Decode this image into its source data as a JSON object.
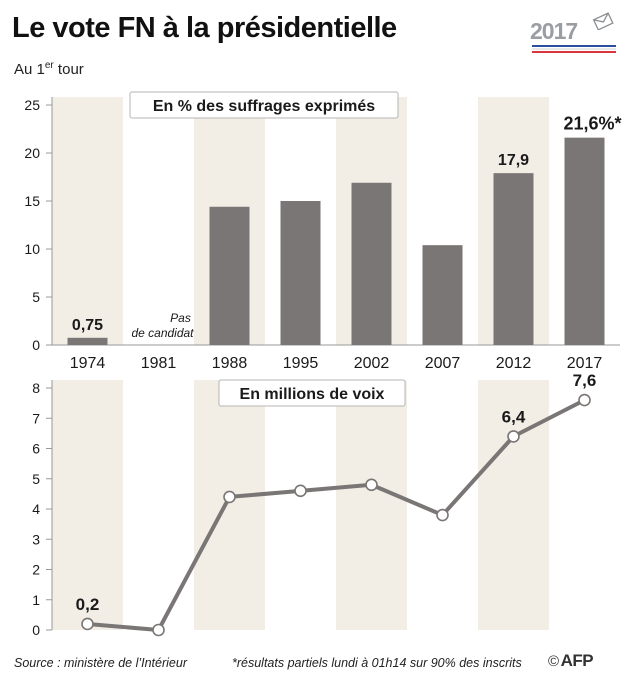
{
  "title": "Le vote FN à la présidentielle",
  "subtitle": {
    "prefix": "Au 1",
    "sup": "er",
    "suffix": " tour"
  },
  "logo": {
    "year": "2017",
    "stripe_colors": [
      "#2b4ea2",
      "#e8e8e8",
      "#d9363e"
    ]
  },
  "colors": {
    "bar": "#7a7675",
    "band": "#f2ede5",
    "axis": "#999999",
    "line": "#7a7675",
    "marker_fill": "#ffffff",
    "text": "#1a1a1a"
  },
  "chart_data": [
    {
      "type": "bar",
      "title": "En % des suffrages exprimés",
      "categories": [
        "1974",
        "1981",
        "1988",
        "1995",
        "2002",
        "2007",
        "2012",
        "2017"
      ],
      "values": [
        0.75,
        null,
        14.4,
        15.0,
        16.9,
        10.4,
        17.9,
        21.6
      ],
      "ylim": [
        0,
        25
      ],
      "yticks": [
        "0",
        "5",
        "10",
        "15",
        "20",
        "25"
      ],
      "data_labels": [
        {
          "index": 0,
          "text": "0,75"
        },
        {
          "index": 6,
          "text": "17,9"
        },
        {
          "index": 7,
          "text": "21,6%*"
        }
      ],
      "no_candidate_label": [
        "Pas",
        "de candidat"
      ],
      "no_candidate_index": 1
    },
    {
      "type": "line",
      "title": "En millions de voix",
      "categories": [
        "1974",
        "1981",
        "1988",
        "1995",
        "2002",
        "2007",
        "2012",
        "2017"
      ],
      "values": [
        0.2,
        0.0,
        4.4,
        4.6,
        4.8,
        3.8,
        6.4,
        7.6
      ],
      "ylim": [
        0,
        8
      ],
      "yticks": [
        "0",
        "1",
        "2",
        "3",
        "4",
        "5",
        "6",
        "7",
        "8"
      ],
      "data_labels": [
        {
          "index": 0,
          "text": "0,2"
        },
        {
          "index": 6,
          "text": "6,4"
        },
        {
          "index": 7,
          "text": "7,6"
        }
      ]
    }
  ],
  "footer": {
    "source": "Source : ministère de l’Intérieur",
    "note": "*résultats partiels lundi à 01h14 sur 90% des inscrits",
    "copyright": "©",
    "agency": "AFP"
  }
}
